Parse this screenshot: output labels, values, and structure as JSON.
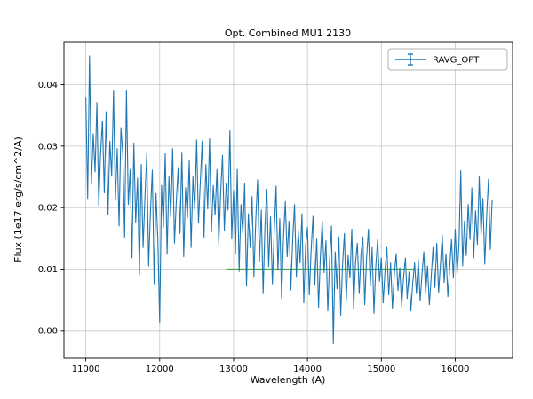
{
  "figure": {
    "title": "Opt. Combined MU1 2130",
    "xlabel": "Wavelength (A)",
    "ylabel": "Flux (1e17 erg/s/cm^2/A)",
    "legend_label": "RAVG_OPT"
  },
  "chart_data": {
    "type": "line",
    "title": "Opt. Combined MU1 2130",
    "xlabel": "Wavelength (A)",
    "ylabel": "Flux (1e17 erg/s/cm^2/A)",
    "grid": true,
    "legend": [
      {
        "label": "RAVG_OPT",
        "color": "#1f77b4",
        "marker": "errorbar",
        "position": "upper right"
      }
    ],
    "xlim": [
      10704,
      16776
    ],
    "ylim": [
      -0.0045,
      0.047
    ],
    "x_ticks": [
      11000,
      12000,
      13000,
      14000,
      15000,
      16000
    ],
    "x_tick_labels": [
      "11000",
      "12000",
      "13000",
      "14000",
      "15000",
      "16000"
    ],
    "y_ticks": [
      0.0,
      0.01,
      0.02,
      0.03,
      0.04
    ],
    "y_tick_labels": [
      "0.00",
      "0.01",
      "0.02",
      "0.03",
      "0.04"
    ],
    "series": [
      {
        "name": "flat-reference-line",
        "color": "#2ca02c",
        "x": [
          12900,
          15450
        ],
        "y": [
          0.01,
          0.01
        ]
      },
      {
        "name": "RAVG_OPT",
        "color": "#1f77b4",
        "x_start": 11000,
        "x_step": 25,
        "y": [
          0.038,
          0.0215,
          0.0447,
          0.0238,
          0.032,
          0.0258,
          0.0371,
          0.0203,
          0.0289,
          0.0341,
          0.0224,
          0.0356,
          0.0189,
          0.0308,
          0.0251,
          0.039,
          0.0212,
          0.0296,
          0.017,
          0.033,
          0.0288,
          0.0152,
          0.039,
          0.0205,
          0.0262,
          0.0118,
          0.0305,
          0.0176,
          0.0248,
          0.0091,
          0.027,
          0.0135,
          0.0216,
          0.0288,
          0.0105,
          0.0194,
          0.0261,
          0.0076,
          0.0223,
          0.0148,
          0.0013,
          0.0236,
          0.0168,
          0.0288,
          0.0124,
          0.025,
          0.0185,
          0.0296,
          0.0142,
          0.0211,
          0.0265,
          0.0158,
          0.029,
          0.012,
          0.0232,
          0.0183,
          0.0276,
          0.0135,
          0.0251,
          0.0196,
          0.031,
          0.0175,
          0.0243,
          0.0308,
          0.0152,
          0.027,
          0.0198,
          0.0312,
          0.016,
          0.0236,
          0.0188,
          0.0262,
          0.014,
          0.0224,
          0.0285,
          0.0163,
          0.024,
          0.0196,
          0.0325,
          0.015,
          0.0228,
          0.0124,
          0.0262,
          0.0096,
          0.0205,
          0.0158,
          0.024,
          0.0072,
          0.019,
          0.0135,
          0.0218,
          0.0088,
          0.018,
          0.0245,
          0.0112,
          0.0196,
          0.006,
          0.0172,
          0.023,
          0.0104,
          0.0185,
          0.0076,
          0.016,
          0.0235,
          0.0098,
          0.0182,
          0.0052,
          0.015,
          0.021,
          0.012,
          0.0178,
          0.0066,
          0.0148,
          0.0205,
          0.0088,
          0.0162,
          0.011,
          0.019,
          0.0045,
          0.0138,
          0.0168,
          0.0058,
          0.0132,
          0.0186,
          0.0075,
          0.015,
          0.0038,
          0.0122,
          0.0178,
          0.0094,
          0.0146,
          0.0032,
          0.0115,
          0.017,
          -0.0021,
          0.0128,
          0.0068,
          0.0152,
          0.0025,
          0.0108,
          0.0158,
          0.0048,
          0.0122,
          0.0086,
          0.0165,
          0.0036,
          0.011,
          0.0142,
          0.006,
          0.0125,
          0.0152,
          0.0042,
          0.0118,
          0.0165,
          0.0072,
          0.0135,
          0.0028,
          0.0105,
          0.0148,
          0.008,
          0.0118,
          0.0045,
          0.0098,
          0.0135,
          0.0058,
          0.011,
          0.0036,
          0.009,
          0.0125,
          0.0065,
          0.0102,
          0.004,
          0.0085,
          0.0118,
          0.0052,
          0.0095,
          0.0032,
          0.0078,
          0.011,
          0.006,
          0.0115,
          0.0048,
          0.0092,
          0.0128,
          0.006,
          0.0105,
          0.0042,
          0.0088,
          0.0135,
          0.007,
          0.0142,
          0.0062,
          0.0108,
          0.0155,
          0.0078,
          0.0125,
          0.0055,
          0.0102,
          0.0148,
          0.0085,
          0.0165,
          0.0092,
          0.0138,
          0.026,
          0.0105,
          0.0178,
          0.0122,
          0.0205,
          0.0148,
          0.0232,
          0.0118,
          0.0195,
          0.014,
          0.025,
          0.0155,
          0.0215,
          0.0108,
          0.0185,
          0.0246,
          0.0132,
          0.0212
        ]
      }
    ]
  }
}
